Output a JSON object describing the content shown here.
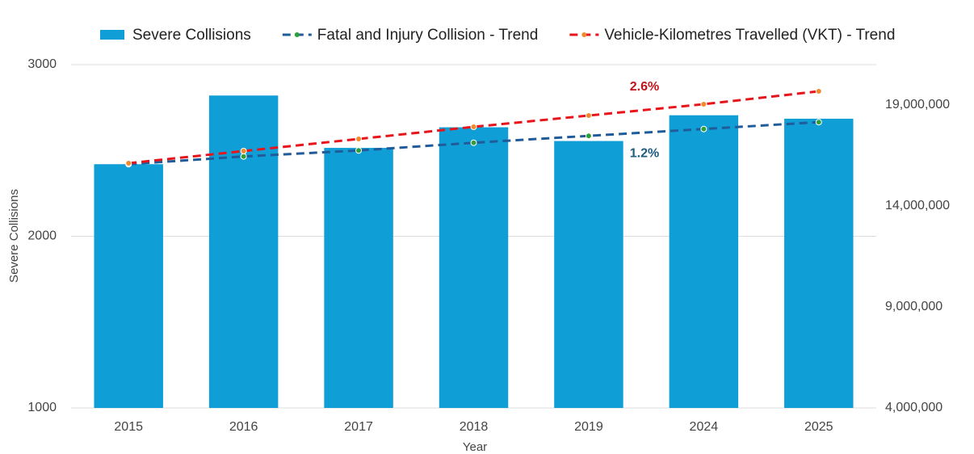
{
  "chart_data": {
    "type": "bar",
    "x_label": "Year",
    "y_label": "Severe Collisions",
    "categories": [
      "2015",
      "2016",
      "2017",
      "2018",
      "2019",
      "2024",
      "2025"
    ],
    "series": [
      {
        "name": "Severe Collisions",
        "type": "bar",
        "color": "#109ed6",
        "values": [
          2420,
          2820,
          2515,
          2635,
          2555,
          2705,
          2685
        ]
      },
      {
        "name": "Fatal and Injury Collision - Trend",
        "type": "line",
        "color": "#1f5c99",
        "marker_color": "#2e9e3a",
        "values": [
          2420,
          2465,
          2500,
          2545,
          2585,
          2625,
          2665
        ]
      },
      {
        "name": "Vehicle-Kilometres Travelled (VKT) - Trend",
        "type": "line",
        "axis": "y2",
        "color": "#e8141b",
        "marker_color": "#f08a2c",
        "values": [
          16120000,
          16720000,
          17320000,
          17920000,
          18480000,
          19040000,
          19680000
        ]
      }
    ],
    "annotations": [
      {
        "text": "2.6%",
        "series": 2,
        "color": "#c0141b"
      },
      {
        "text": "1.2%",
        "series": 1,
        "color": "#1f5c80"
      }
    ],
    "ylim": [
      1000,
      3000
    ],
    "yticks": [
      1000,
      2000,
      3000
    ],
    "y2lim": [
      4000000,
      21000000
    ],
    "y2ticks": [
      {
        "value": 4000000,
        "label": "4,000,000"
      },
      {
        "value": 9000000,
        "label": "9,000,000"
      },
      {
        "value": 14000000,
        "label": "14,000,000"
      },
      {
        "value": 19000000,
        "label": "19,000,000"
      }
    ],
    "grid": true,
    "legend": "top"
  }
}
